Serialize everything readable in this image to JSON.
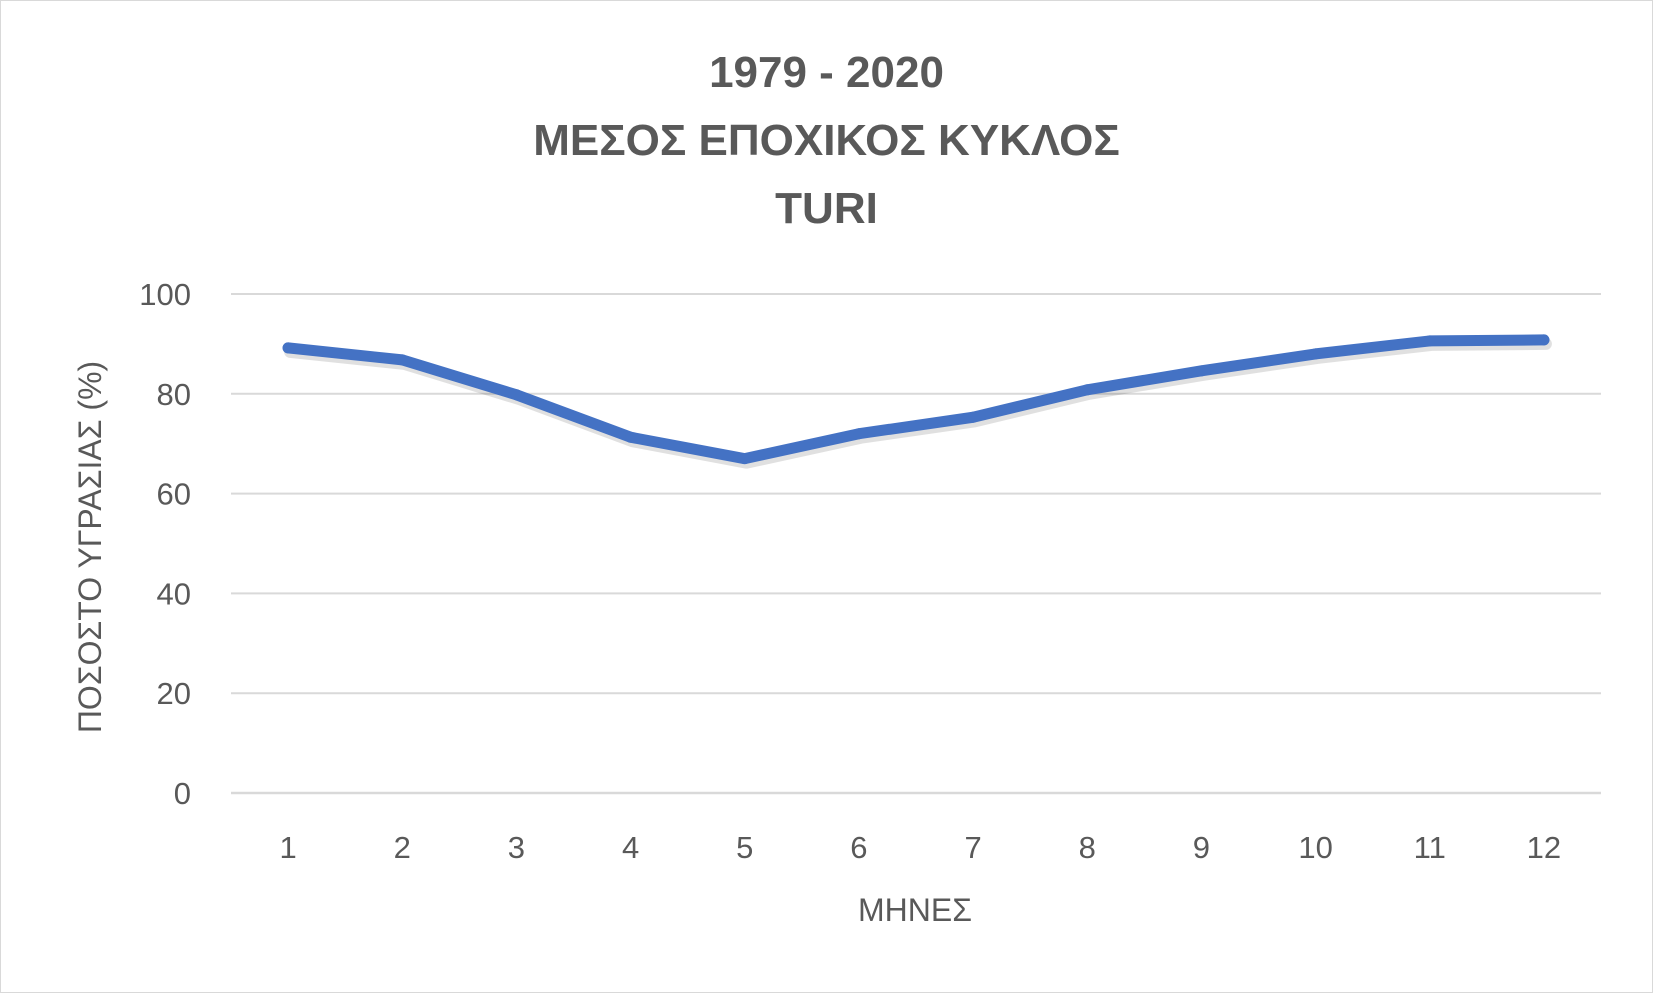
{
  "chart_data": {
    "type": "line",
    "title_lines": [
      "1979 - 2020",
      "ΜΕΣΟΣ ΕΠΟΧΙΚΟΣ ΚΥΚΛΟΣ",
      "TURI"
    ],
    "xlabel": "ΜΗΝΕΣ",
    "ylabel": "ΠΟΣΟΣΤΟ ΥΓΡΑΣΙΑΣ (%)",
    "categories": [
      "1",
      "2",
      "3",
      "4",
      "5",
      "6",
      "7",
      "8",
      "9",
      "10",
      "11",
      "12"
    ],
    "yticks": [
      "0",
      "20",
      "40",
      "60",
      "80",
      "100"
    ],
    "ylim": [
      0,
      100
    ],
    "grid": true,
    "legend": "none",
    "series": [
      {
        "color": "#4472c4",
        "values": [
          89.2,
          86.8,
          79.8,
          71.3,
          67.0,
          72.0,
          75.3,
          80.8,
          84.6,
          88.0,
          90.6,
          90.8
        ]
      }
    ]
  }
}
